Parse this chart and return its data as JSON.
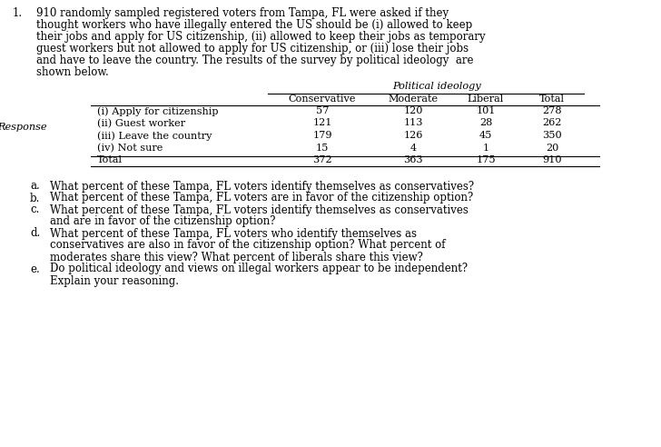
{
  "title_number": "1.",
  "intro_lines": [
    "910 randomly sampled registered voters from Tampa, FL were asked if they",
    "thought workers who have illegally entered the US should be (i) allowed to keep",
    "their jobs and apply for US citizenship, (ii) allowed to keep their jobs as temporary",
    "guest workers but not allowed to apply for US citizenship, or (iii) lose their jobs",
    "and have to leave the country. The results of the survey by political ideology  are",
    "shown below."
  ],
  "table_header_top": "Political ideology",
  "table_col_headers": [
    "Conservative",
    "Moderate",
    "Liberal",
    "Total"
  ],
  "row_label_group": "Response",
  "row_labels": [
    "(i) Apply for citizenship",
    "(ii) Guest worker",
    "(iii) Leave the country",
    "(iv) Not sure",
    "Total"
  ],
  "table_data": [
    [
      57,
      120,
      101,
      278
    ],
    [
      121,
      113,
      28,
      262
    ],
    [
      179,
      126,
      45,
      350
    ],
    [
      15,
      4,
      1,
      20
    ],
    [
      372,
      363,
      175,
      910
    ]
  ],
  "questions": [
    [
      "a.",
      "What percent of these Tampa, FL voters identify themselves as conservatives?"
    ],
    [
      "b.",
      "What percent of these Tampa, FL voters are in favor of the citizenship option?"
    ],
    [
      "c.",
      "What percent of these Tampa, FL voters identify themselves as conservatives",
      "and are in favor of the citizenship option?"
    ],
    [
      "d.",
      "What percent of these Tampa, FL voters who identify themselves as",
      "conservatives are also in favor of the citizenship option? What percent of",
      "moderates share this view? What percent of liberals share this view?"
    ],
    [
      "e.",
      "Do political ideology and views on illegal workers appear to be independent?",
      "Explain your reasoning."
    ]
  ],
  "bg_color": "#ffffff",
  "text_color": "#000000",
  "font_size_intro": 8.5,
  "font_size_table": 8.1,
  "font_size_questions": 8.5
}
